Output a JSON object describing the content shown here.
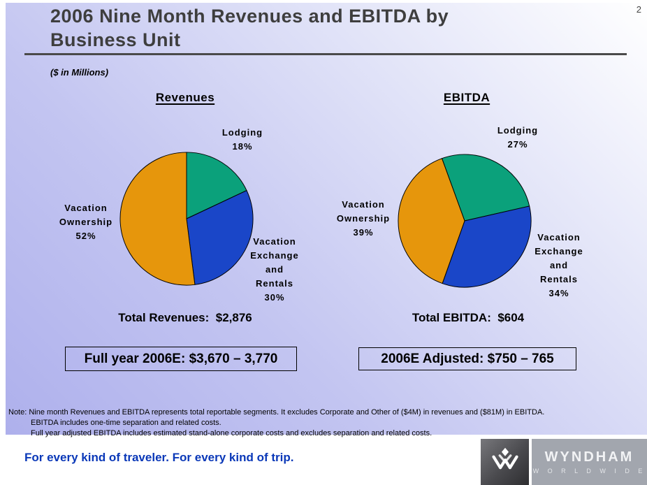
{
  "page_number": "2",
  "header": {
    "title": "2006 Nine Month Revenues and EBITDA by Business Unit",
    "units_label": "($ in Millions)"
  },
  "chart_data": [
    {
      "type": "pie",
      "title": "Revenues",
      "start_angle_deg": 0,
      "slices": [
        {
          "label": "Lodging",
          "value_pct": 18,
          "color": "#0ba17b",
          "callout": "Lodging\n18%"
        },
        {
          "label": "Vacation Exchange and Rentals",
          "value_pct": 30,
          "color": "#1a46c8",
          "callout": "Vacation\nExchange\nand\nRentals\n30%"
        },
        {
          "label": "Vacation Ownership",
          "value_pct": 52,
          "color": "#e6960c",
          "callout": "Vacation\nOwnership\n52%"
        }
      ],
      "total_line": "Total Revenues:  $2,876",
      "total_value_millions": 2876,
      "estimate_box": "Full year 2006E: $3,670 – 3,770"
    },
    {
      "type": "pie",
      "title": "EBITDA",
      "start_angle_deg": -20,
      "slices": [
        {
          "label": "Lodging",
          "value_pct": 27,
          "color": "#0ba17b",
          "callout": "Lodging\n27%"
        },
        {
          "label": "Vacation Exchange and Rentals",
          "value_pct": 34,
          "color": "#1a46c8",
          "callout": "Vacation\nExchange\nand\nRentals\n34%"
        },
        {
          "label": "Vacation Ownership",
          "value_pct": 39,
          "color": "#e6960c",
          "callout": "Vacation\nOwnership\n39%"
        }
      ],
      "total_line": "Total EBITDA:  $604",
      "total_value_millions": 604,
      "estimate_box": "2006E Adjusted: $750 – 765"
    }
  ],
  "notes": {
    "line1": "Note: Nine month Revenues and EBITDA represents total reportable segments. It excludes Corporate and Other of ($4M) in revenues and ($81M) in EBITDA.",
    "line2": "EBITDA includes one-time separation and related costs.",
    "line3": "Full year adjusted EBITDA includes estimated stand-alone corporate costs and excludes separation and related costs."
  },
  "footer": {
    "tagline": "For every kind of traveler. For every kind of trip.",
    "logo": {
      "brand": "WYNDHAM",
      "subbrand": "W O R L D W I D E",
      "monogram_icon": "wyndham-w-icon"
    }
  },
  "colors": {
    "lodging_green": "#0ba17b",
    "exchange_rentals_blue": "#1a46c8",
    "ownership_orange": "#e6960c",
    "tagline_blue": "#0a38b8"
  }
}
